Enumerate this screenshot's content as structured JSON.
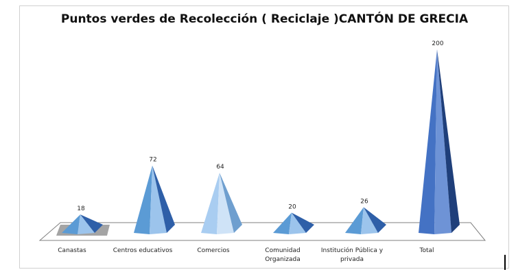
{
  "chart_data": {
    "type": "bar",
    "title": "Puntos verdes de Recolección ( Reciclaje )CANTÓN DE GRECIA",
    "categories": [
      [
        "Canastas"
      ],
      [
        "Centros educativos"
      ],
      [
        "Comercios"
      ],
      [
        "Comunidad",
        "Organizada"
      ],
      [
        "Institución Pública y",
        "privada"
      ],
      [
        "Total"
      ]
    ],
    "values": [
      18,
      72,
      64,
      20,
      26,
      200
    ],
    "xlabel": "",
    "ylabel": "",
    "ylim": [
      0,
      200
    ],
    "grid": false,
    "legend": "none",
    "bar_shape": "pyramid-3d",
    "colors": {
      "pyramid_light": "#9cc4ec",
      "pyramid_mid": "#5b9bd5",
      "pyramid_dark": "#2e5fa8",
      "highlight_bar": "#a9cdf1",
      "total_bar": "#4472c4",
      "floor": "#ffffff",
      "floor_edge": "#7f7f7f"
    }
  }
}
